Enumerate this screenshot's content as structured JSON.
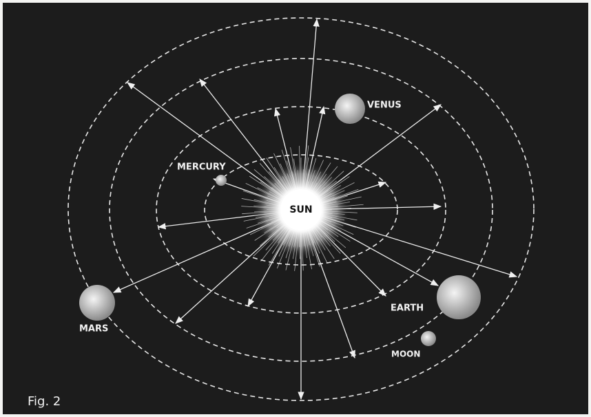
{
  "figure": {
    "label": "Fig. 2"
  },
  "bodies": {
    "sun": "SUN",
    "mercury": "MERCURY",
    "venus": "VENUS",
    "earth": "EARTH",
    "mars": "MARS",
    "moon": "MOON"
  }
}
